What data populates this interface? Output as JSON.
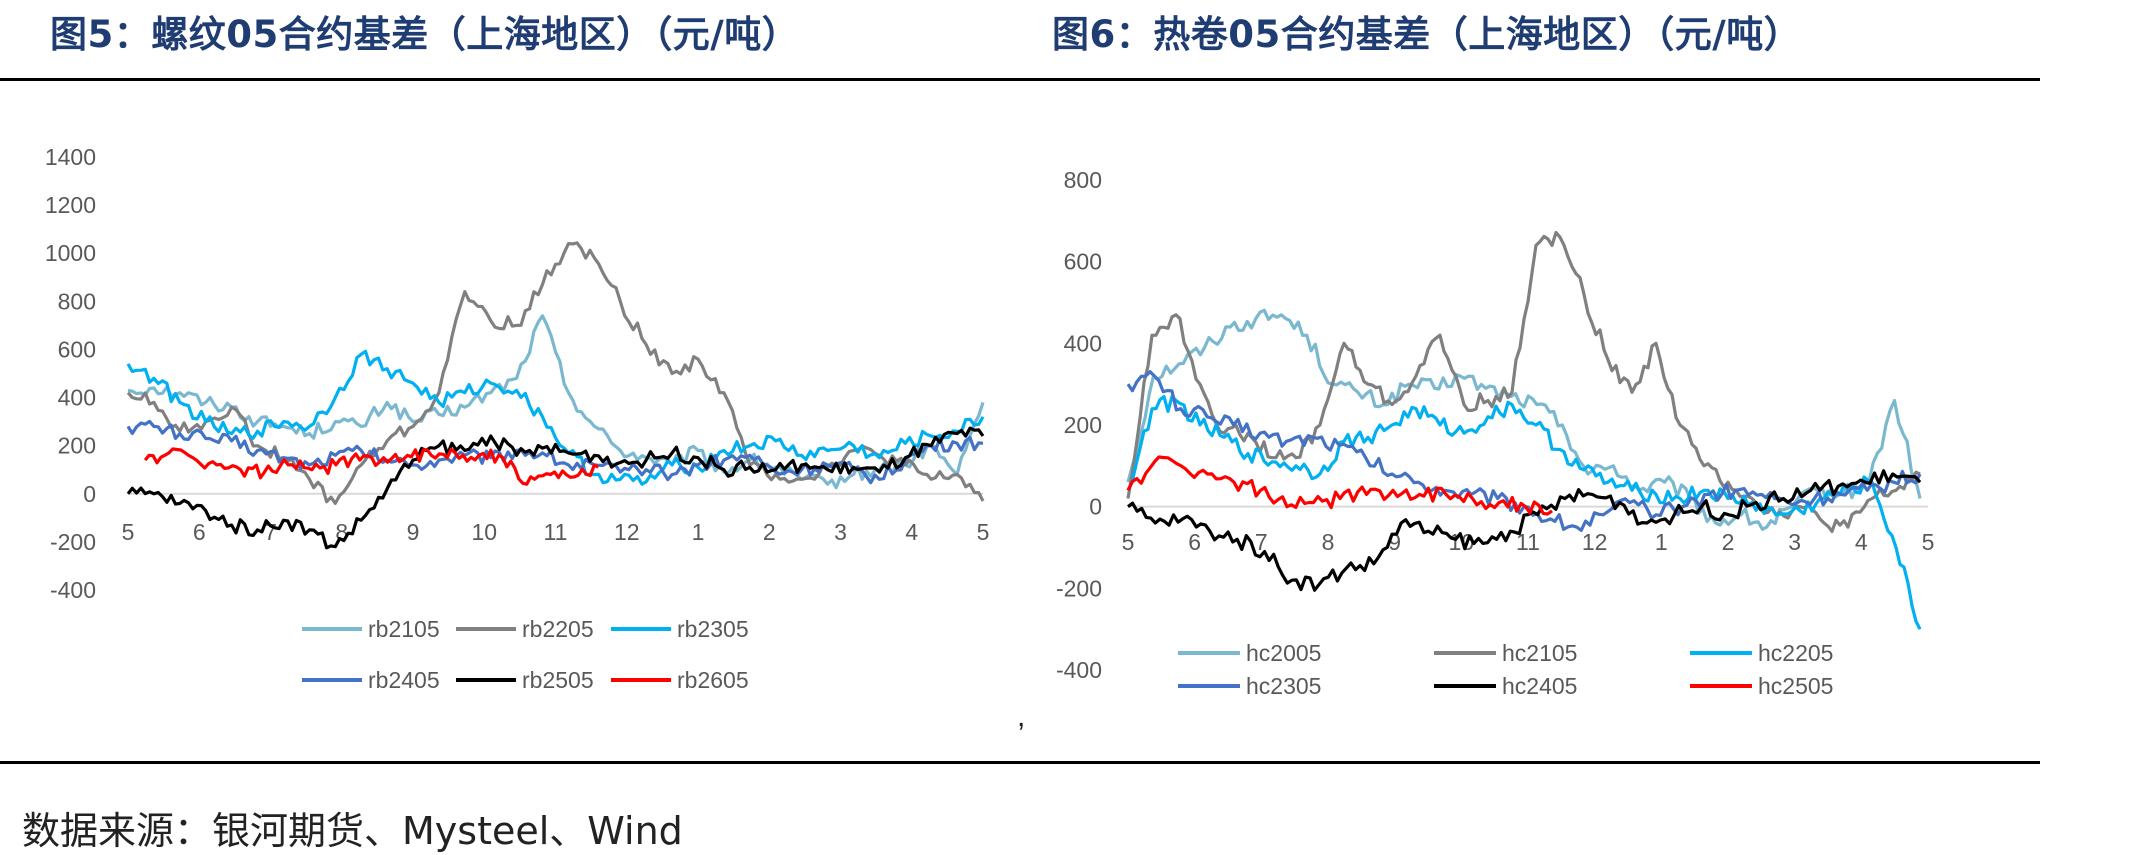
{
  "header": {
    "fig5_title": "图5：螺纹05合约基差（上海地区）（元/吨）",
    "fig6_title": "图6：热卷05合约基差（上海地区）（元/吨）"
  },
  "separator": ",",
  "source": "数据来源：银河期货、Mysteel、Wind",
  "chart_data": [
    {
      "type": "line",
      "title": "",
      "xlabel": "",
      "ylabel": "",
      "x_ticks": [
        "5",
        "6",
        "7",
        "8",
        "9",
        "10",
        "11",
        "12",
        "1",
        "2",
        "3",
        "4",
        "5"
      ],
      "y_ticks": [
        -400,
        -200,
        0,
        200,
        400,
        600,
        800,
        1000,
        1200,
        1400
      ],
      "ylim": [
        -400,
        1400
      ],
      "legend": "bottom",
      "series": [
        {
          "name": "rb2105",
          "color": "#7ab8cf",
          "values": [
            430,
            440,
            420,
            380,
            360,
            300,
            280,
            250,
            300,
            280,
            380,
            300,
            330,
            360,
            420,
            480,
            740,
            420,
            280,
            180,
            150,
            120,
            180,
            90,
            140,
            110,
            60,
            40,
            80,
            100,
            120,
            200,
            80,
            380
          ]
        },
        {
          "name": "rb2205",
          "color": "#808080",
          "values": [
            420,
            380,
            260,
            300,
            360,
            200,
            150,
            60,
            -40,
            120,
            220,
            280,
            420,
            840,
            720,
            700,
            870,
            1040,
            980,
            800,
            620,
            500,
            560,
            420,
            120,
            80,
            60,
            110,
            180,
            160,
            120,
            60,
            80,
            -30
          ]
        },
        {
          "name": "rb2305",
          "color": "#00b0f0",
          "values": [
            540,
            480,
            380,
            300,
            250,
            260,
            300,
            280,
            400,
            580,
            520,
            460,
            380,
            420,
            460,
            430,
            320,
            170,
            80,
            60,
            50,
            120,
            110,
            180,
            200,
            220,
            160,
            180,
            200,
            150,
            210,
            240,
            260,
            320
          ]
        },
        {
          "name": "rb2405",
          "color": "#4472c4",
          "values": [
            280,
            280,
            250,
            230,
            220,
            180,
            150,
            120,
            160,
            180,
            140,
            120,
            140,
            160,
            150,
            180,
            170,
            120,
            120,
            90,
            100,
            80,
            120,
            140,
            160,
            90,
            100,
            120,
            100,
            60,
            140,
            200,
            210,
            210
          ]
        },
        {
          "name": "rb2505",
          "color": "#000000",
          "values": [
            0,
            0,
            -40,
            -70,
            -130,
            -150,
            -110,
            -150,
            -220,
            -110,
            20,
            140,
            200,
            180,
            240,
            160,
            190,
            170,
            160,
            130,
            140,
            170,
            150,
            100,
            110,
            100,
            120,
            100,
            110,
            90,
            150,
            200,
            250,
            240
          ]
        },
        {
          "name": "rb2605",
          "color": "#ff0000",
          "values": [
            140,
            170,
            150,
            120,
            100,
            90,
            120,
            100,
            120,
            140,
            150,
            160,
            160,
            170,
            160,
            150,
            40,
            80,
            70,
            110
          ]
        }
      ]
    },
    {
      "type": "line",
      "title": "",
      "xlabel": "",
      "ylabel": "",
      "x_ticks": [
        "5",
        "6",
        "7",
        "8",
        "9",
        "10",
        "11",
        "12",
        "1",
        "2",
        "3",
        "4",
        "5"
      ],
      "y_ticks": [
        -400,
        -200,
        0,
        200,
        400,
        600,
        800
      ],
      "ylim": [
        -400,
        800
      ],
      "legend": "bottom",
      "series": [
        {
          "name": "hc2005",
          "color": "#7ab8cf",
          "values": [
            60,
            320,
            350,
            390,
            440,
            460,
            470,
            420,
            300,
            280,
            250,
            300,
            290,
            320,
            290,
            270,
            250,
            200,
            80,
            100,
            40,
            60,
            20,
            -40,
            -20,
            -50,
            0,
            40,
            30,
            60,
            260,
            20
          ]
        },
        {
          "name": "hc2105",
          "color": "#808080",
          "values": [
            20,
            420,
            470,
            300,
            180,
            180,
            120,
            120,
            200,
            400,
            300,
            250,
            320,
            420,
            250,
            260,
            280,
            640,
            660,
            520,
            360,
            280,
            400,
            200,
            100,
            60,
            20,
            -20,
            0,
            -40,
            -50,
            20,
            40,
            80
          ]
        },
        {
          "name": "hc2205",
          "color": "#00b0f0",
          "values": [
            40,
            240,
            260,
            200,
            170,
            130,
            110,
            100,
            80,
            160,
            170,
            200,
            240,
            200,
            180,
            220,
            250,
            200,
            140,
            90,
            60,
            40,
            30,
            20,
            40,
            20,
            10,
            -20,
            -10,
            20,
            40,
            60,
            -100,
            -300
          ]
        },
        {
          "name": "hc2305",
          "color": "#4472c4",
          "values": [
            300,
            320,
            240,
            220,
            200,
            180,
            160,
            170,
            150,
            120,
            80,
            60,
            40,
            30,
            20,
            0,
            -30,
            -50,
            -20,
            10,
            -20,
            0,
            30,
            40,
            30,
            10,
            20,
            30,
            40,
            60,
            80
          ]
        },
        {
          "name": "hc2405",
          "color": "#000000",
          "values": [
            0,
            -40,
            -30,
            -60,
            -80,
            -110,
            -180,
            -190,
            -150,
            -140,
            -40,
            -60,
            -80,
            -90,
            -60,
            -20,
            20,
            30,
            10,
            -40,
            -20,
            0,
            -20,
            10,
            20,
            40,
            50,
            60,
            80,
            60
          ]
        },
        {
          "name": "hc2505",
          "color": "#ff0000",
          "values": [
            40,
            110,
            100,
            80,
            60,
            40,
            0,
            10,
            20,
            30,
            40,
            30,
            30,
            20,
            10,
            0,
            -10
          ]
        }
      ]
    }
  ]
}
